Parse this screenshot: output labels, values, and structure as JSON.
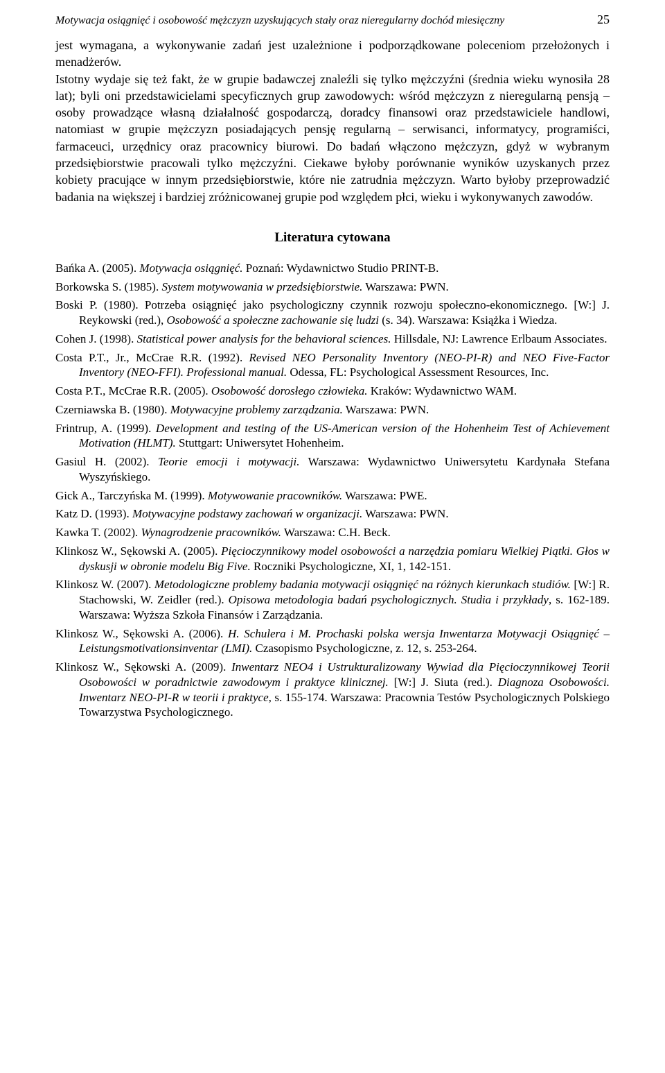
{
  "header": {
    "running_title": "Motywacja osiągnięć i osobowość mężczyzn uzyskujących stały oraz nieregularny dochód miesięczny",
    "page_number": "25"
  },
  "body": {
    "p1": "jest wymagana, a wykonywanie zadań jest uzależnione i podporządkowane poleceniom przełożonych i menadżerów.",
    "p2": "Istotny wydaje się też fakt, że w grupie badawczej znaleźli się tylko mężczyźni (średnia wieku wynosiła 28 lat); byli oni przedstawicielami specyficznych grup zawodowych: wśród mężczyzn z nieregularną pensją – osoby prowadzące własną działalność gospodarczą, doradcy finansowi oraz przedstawiciele handlowi, natomiast w grupie mężczyzn posiadających pensję regularną – serwisanci, informatycy, programiści, farmaceuci, urzędnicy oraz pracownicy biurowi. Do badań włączono mężczyzn, gdyż w wybranym przedsiębiorstwie pracowali tylko mężczyźni. Ciekawe byłoby porównanie wyników uzyskanych przez kobiety pracujące w innym przedsiębiorstwie, które nie zatrudnia mężczyzn. Warto byłoby przeprowadzić badania na większej i bardziej zróżnicowanej grupie pod względem płci, wieku i wykonywanych zawodów."
  },
  "section_title": "Literatura cytowana",
  "refs": [
    {
      "a": "Bańka A. (2005). ",
      "i": "Motywacja osiągnięć.",
      "b": " Poznań: Wydawnictwo Studio PRINT-B."
    },
    {
      "a": "Borkowska S. (1985). ",
      "i": "System motywowania w przedsiębiorstwie.",
      "b": " Warszawa: PWN."
    },
    {
      "a": "Boski P. (1980). Potrzeba osiągnięć jako psychologiczny czynnik rozwoju społeczno-ekonomicznego. [W:] J. Reykowski (red.), ",
      "i": "Osobowość a społeczne zachowanie się ludzi",
      "b": " (s. 34). Warszawa: Książka i Wiedza."
    },
    {
      "a": "Cohen J. (1998). ",
      "i": "Statistical power analysis for the behavioral sciences.",
      "b": " Hillsdale, NJ: Lawrence Erlbaum Associates."
    },
    {
      "a": "Costa P.T., Jr., McCrae R.R. (1992). ",
      "i": "Revised NEO Personality Inventory (NEO-PI-R) and NEO Five-Factor Inventory (NEO-FFI). Professional manual.",
      "b": " Odessa, FL: Psychological Assessment Resources, Inc."
    },
    {
      "a": "Costa P.T., McCrae R.R. (2005). ",
      "i": "Osobowość dorosłego człowieka.",
      "b": " Kraków: Wydawnictwo WAM."
    },
    {
      "a": "Czerniawska B. (1980). ",
      "i": "Motywacyjne problemy zarządzania.",
      "b": " Warszawa: PWN."
    },
    {
      "a": "Frintrup, A. (1999). ",
      "i": "Development and testing of the US-American version of the Hohenheim Test of Achievement Motivation (HLMT).",
      "b": " Stuttgart: Uniwersytet Hohenheim."
    },
    {
      "a": "Gasiul H. (2002). ",
      "i": "Teorie emocji i motywacji.",
      "b": " Warszawa: Wydawnictwo Uniwersytetu Kardynała Stefana Wyszyńskiego."
    },
    {
      "a": "Gick A., Tarczyńska M. (1999). ",
      "i": "Motywowanie pracowników.",
      "b": " Warszawa: PWE."
    },
    {
      "a": "Katz D. (1993). ",
      "i": "Motywacyjne podstawy zachowań w organizacji.",
      "b": " Warszawa: PWN."
    },
    {
      "a": "Kawka T. (2002). ",
      "i": "Wynagrodzenie pracowników.",
      "b": " Warszawa: C.H. Beck."
    },
    {
      "a": "Klinkosz W., Sękowski A. (2005). ",
      "i": "Pięcioczynnikowy model osobowości a narzędzia pomiaru Wielkiej Piątki. Głos w dyskusji w obronie modelu Big Five.",
      "b": " Roczniki Psychologiczne, XI, 1, 142-151."
    },
    {
      "a": "Klinkosz W. (2007). ",
      "i": "Metodologiczne problemy badania motywacji osiągnięć na różnych kierunkach studiów.",
      "b": " [W:] R. Stachowski, W. Zeidler (red.). ",
      "i2": "Opisowa metodologia badań psychologicznych. Studia i przykłady",
      "c": ", s. 162-189. Warszawa: Wyższa Szkoła Finansów i Zarządzania."
    },
    {
      "a": "Klinkosz W., Sękowski A. (2006). ",
      "i": "H. Schulera i M. Prochaski polska wersja Inwentarza Motywacji Osiągnięć – Leistungsmotivationsinventar (LMI).",
      "b": " Czasopismo Psychologiczne, z. 12, s. 253-264."
    },
    {
      "a": "Klinkosz W., Sękowski A. (2009). ",
      "i": "Inwentarz NEO4 i Ustrukturalizowany Wywiad dla Pięcioczynnikowej Teorii Osobowości w poradnictwie zawodowym i praktyce klinicznej.",
      "b": " [W:] J. Siuta (red.). ",
      "i2": "Diagnoza Osobowości. Inwentarz NEO-PI-R w teorii i praktyce",
      "c": ", s. 155-174. Warszawa: Pracownia Testów Psychologicznych Polskiego Towarzystwa Psychologicznego."
    }
  ]
}
